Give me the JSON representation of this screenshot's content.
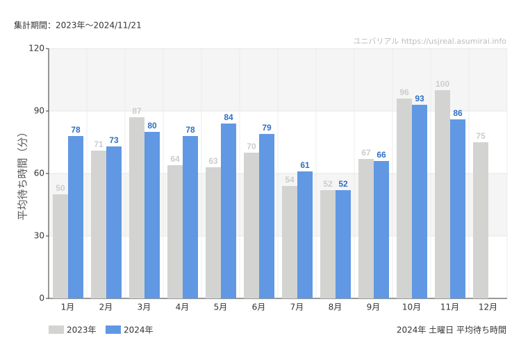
{
  "header": "集計期間：2023年〜2024/11/21",
  "watermark": "ユニバリアル  https://usjreal.asumirai.info",
  "footnote": "2024年 土曜日 平均待ち時間",
  "chart_data": {
    "type": "bar",
    "y_label": "平均待ち時間（分）",
    "categories": [
      "1月",
      "2月",
      "3月",
      "4月",
      "5月",
      "6月",
      "7月",
      "8月",
      "9月",
      "10月",
      "11月",
      "12月"
    ],
    "series": [
      {
        "name": "2023年",
        "color": "#d3d3d1",
        "label_color": "#cccccc",
        "values": [
          50,
          71,
          87,
          64,
          63,
          70,
          54,
          52,
          67,
          96,
          100,
          75
        ]
      },
      {
        "name": "2024年",
        "color": "#6098e3",
        "label_color": "#2f6fc0",
        "values": [
          78,
          73,
          80,
          78,
          84,
          79,
          61,
          52,
          66,
          93,
          86,
          null
        ]
      }
    ],
    "ylim": [
      0,
      120
    ],
    "yticks": [
      0,
      30,
      60,
      90,
      120
    ],
    "grid": true
  }
}
